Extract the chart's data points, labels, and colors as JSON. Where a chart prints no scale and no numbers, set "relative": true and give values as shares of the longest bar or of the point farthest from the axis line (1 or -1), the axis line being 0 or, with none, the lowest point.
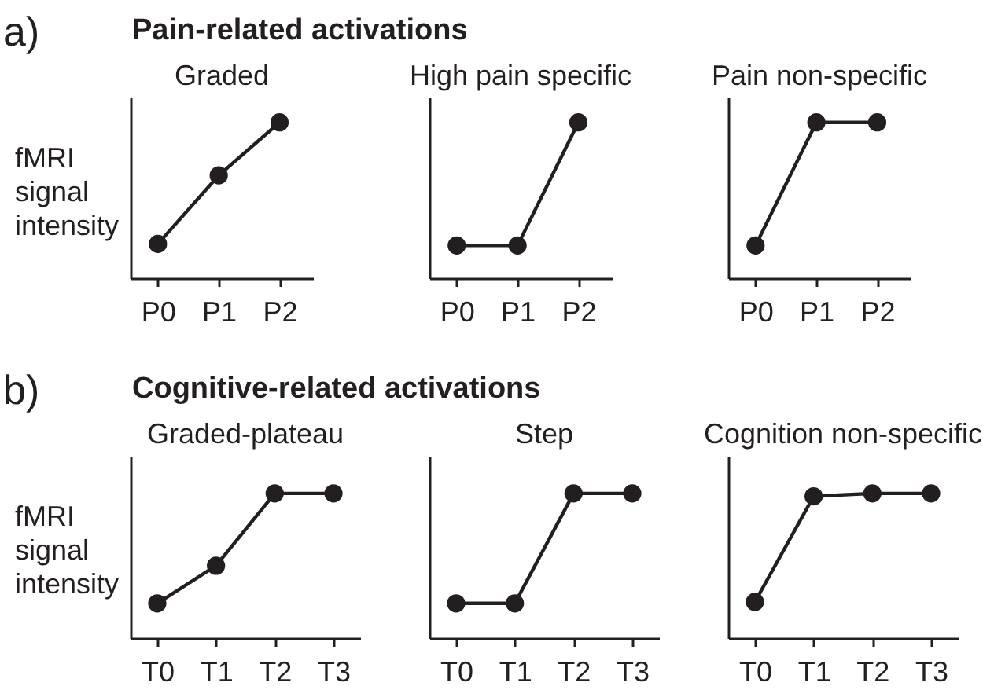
{
  "chart_data": [
    {
      "type": "line",
      "title": "Graded",
      "ylabel": "fMRI signal intensity",
      "annotations": [
        "a)",
        "Pain-related activations"
      ],
      "categories": [
        "P0",
        "P1",
        "P2"
      ],
      "values": [
        0.22,
        0.66,
        1
      ],
      "color": "#231f20",
      "relative": true,
      "marker": "circle"
    },
    {
      "type": "line",
      "title": "High pain specific",
      "categories": [
        "P0",
        "P1",
        "P2"
      ],
      "values": [
        0.21,
        0.21,
        1
      ],
      "color": "#231f20",
      "relative": true,
      "marker": "circle"
    },
    {
      "type": "line",
      "title": "Pain non-specific",
      "categories": [
        "P0",
        "P1",
        "P2"
      ],
      "values": [
        0.21,
        1,
        1
      ],
      "color": "#231f20",
      "relative": true,
      "marker": "circle"
    },
    {
      "type": "line",
      "title": "Graded-plateau",
      "ylabel": "fMRI signal intensity",
      "annotations": [
        "b)",
        "Cognitive-related activations"
      ],
      "categories": [
        "T0",
        "T1",
        "T2",
        "T3"
      ],
      "values": [
        0.24,
        0.5,
        1,
        1
      ],
      "color": "#231f20",
      "relative": true,
      "marker": "circle"
    },
    {
      "type": "line",
      "title": "Step",
      "categories": [
        "T0",
        "T1",
        "T2",
        "T3"
      ],
      "values": [
        0.24,
        0.24,
        1,
        1
      ],
      "color": "#231f20",
      "relative": true,
      "marker": "circle"
    },
    {
      "type": "line",
      "title": "Cognition non-specific",
      "categories": [
        "T0",
        "T1",
        "T2",
        "T3"
      ],
      "values": [
        0.25,
        0.98,
        1,
        1
      ],
      "color": "#231f20",
      "relative": true,
      "marker": "circle"
    }
  ]
}
